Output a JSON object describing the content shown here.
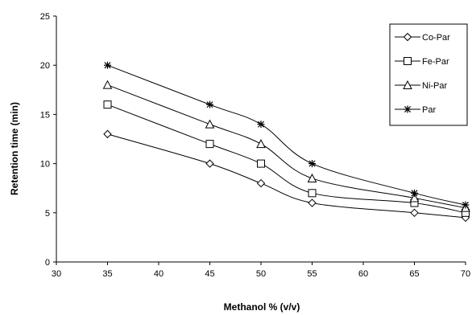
{
  "chart_data": {
    "type": "line",
    "xlabel": "Methanol % (v/v)",
    "ylabel": "Retention time (min)",
    "xlim": [
      30,
      70
    ],
    "ylim": [
      0,
      25
    ],
    "xticks": [
      30,
      35,
      40,
      45,
      50,
      55,
      60,
      65,
      70
    ],
    "yticks": [
      0,
      5,
      10,
      15,
      20,
      25
    ],
    "grid": false,
    "legend_position": "top-right",
    "series": [
      {
        "name": "Co-Par",
        "marker": "diamond",
        "x": [
          35,
          45,
          50,
          55,
          65,
          70
        ],
        "y": [
          13,
          10,
          8,
          6,
          5,
          4.5
        ]
      },
      {
        "name": "Fe-Par",
        "marker": "square",
        "x": [
          35,
          45,
          50,
          55,
          65,
          70
        ],
        "y": [
          16,
          12,
          10,
          7,
          6,
          5
        ]
      },
      {
        "name": "Ni-Par",
        "marker": "triangle",
        "x": [
          35,
          45,
          50,
          55,
          65,
          70
        ],
        "y": [
          18,
          14,
          12,
          8.5,
          6.5,
          5.5
        ]
      },
      {
        "name": "Par",
        "marker": "star",
        "x": [
          35,
          45,
          50,
          55,
          65,
          70
        ],
        "y": [
          20,
          16,
          14,
          10,
          7,
          5.8
        ]
      }
    ]
  }
}
